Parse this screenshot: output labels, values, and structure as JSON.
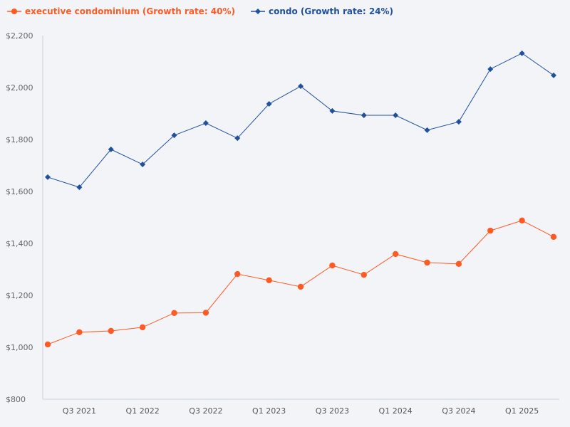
{
  "chart_data": {
    "type": "line",
    "title": "",
    "xlabel": "",
    "ylabel": "",
    "ylim": [
      800,
      2200
    ],
    "y_ticks": [
      "$800",
      "$1,000",
      "$1,200",
      "$1,400",
      "$1,600",
      "$1,800",
      "$2,000",
      "$2,200"
    ],
    "y_tick_values": [
      800,
      1000,
      1200,
      1400,
      1600,
      1800,
      2000,
      2200
    ],
    "x_tick_labels": [
      "Q3 2021",
      "Q1 2022",
      "Q3 2022",
      "Q1 2023",
      "Q3 2023",
      "Q1 2024",
      "Q3 2024",
      "Q1 2025"
    ],
    "x_tick_indices": [
      1,
      3,
      5,
      7,
      9,
      11,
      13,
      15
    ],
    "grid": false,
    "legend_position": "top-left",
    "series": [
      {
        "name": "executive condominium (Growth rate: 40%)",
        "color": "#ff5a24",
        "marker": "circle",
        "values": [
          1011,
          1058,
          1063,
          1077,
          1132,
          1133,
          1282,
          1258,
          1233,
          1315,
          1279,
          1359,
          1326,
          1321,
          1449,
          1488,
          1425
        ]
      },
      {
        "name": "condo (Growth rate: 24%)",
        "color": "#21509e",
        "marker": "diamond",
        "values": [
          1655,
          1616,
          1762,
          1704,
          1816,
          1863,
          1805,
          1937,
          2005,
          1910,
          1893,
          1893,
          1836,
          1868,
          2071,
          2132,
          2047
        ]
      }
    ]
  }
}
